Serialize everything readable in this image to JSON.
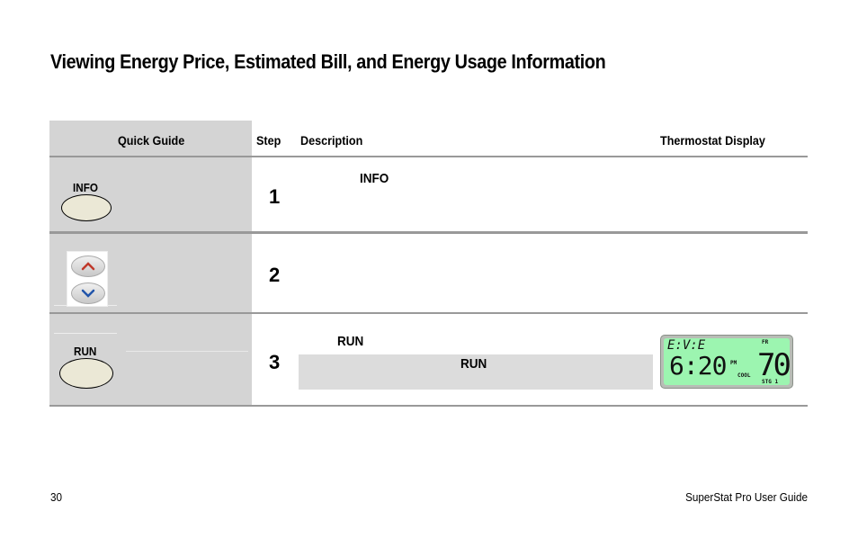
{
  "page": {
    "title": "Viewing Energy Price, Estimated Bill, and Energy Usage Information",
    "page_number": "30",
    "guide_name": "SuperStat Pro User Guide"
  },
  "table": {
    "headers": {
      "quick_guide": "Quick Guide",
      "step": "Step",
      "description": "Description",
      "display": "Thermostat Display"
    },
    "rows": [
      {
        "step": "1",
        "button_label": "INFO",
        "description_keyword": "INFO"
      },
      {
        "step": "2"
      },
      {
        "step": "3",
        "button_label": "RUN",
        "description_keyword": "RUN",
        "note_keyword": "RUN"
      }
    ]
  },
  "lcd": {
    "period": "E:V:E",
    "time": "6:20",
    "ampm": "PM",
    "temperature": "70",
    "day": "FR",
    "mode": "COOL",
    "stage": "STG 1"
  },
  "colors": {
    "guide_bg": "#d4d4d4",
    "note_bg": "#dcdcdc",
    "button_fill": "#ebe8d6",
    "lcd_green": "#9cf5b0",
    "up_arrow": "#c0392b",
    "down_arrow": "#2255aa"
  }
}
